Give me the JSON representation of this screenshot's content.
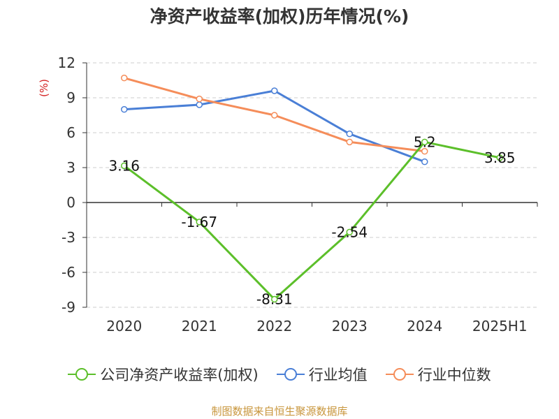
{
  "title": "净资产收益率(加权)历年情况(%)",
  "source": "制图数据来自恒生聚源数据库",
  "chart_data": {
    "type": "line",
    "title": "净资产收益率(加权)历年情况(%)",
    "ylabel": "(%)",
    "ylim": [
      -9,
      12
    ],
    "yticks": [
      12,
      9,
      6,
      3,
      0,
      -3,
      -6,
      -9
    ],
    "categories": [
      "2020",
      "2021",
      "2022",
      "2023",
      "2024",
      "2025H1"
    ],
    "grid": true,
    "legend_position": "bottom",
    "series": [
      {
        "name": "公司净资产收益率(加权)",
        "color": "#5cbf2a",
        "values": [
          3.16,
          -1.67,
          -8.31,
          -2.54,
          5.2,
          3.85
        ],
        "labels": [
          "3.16",
          "-1.67",
          "-8.31",
          "-2.54",
          "5.2",
          "3.85"
        ]
      },
      {
        "name": "行业均值",
        "color": "#4a7fd6",
        "values": [
          8.0,
          8.4,
          9.6,
          5.9,
          3.5,
          null
        ]
      },
      {
        "name": "行业中位数",
        "color": "#f58d5a",
        "values": [
          10.7,
          8.9,
          7.5,
          5.2,
          4.4,
          null
        ]
      }
    ]
  }
}
